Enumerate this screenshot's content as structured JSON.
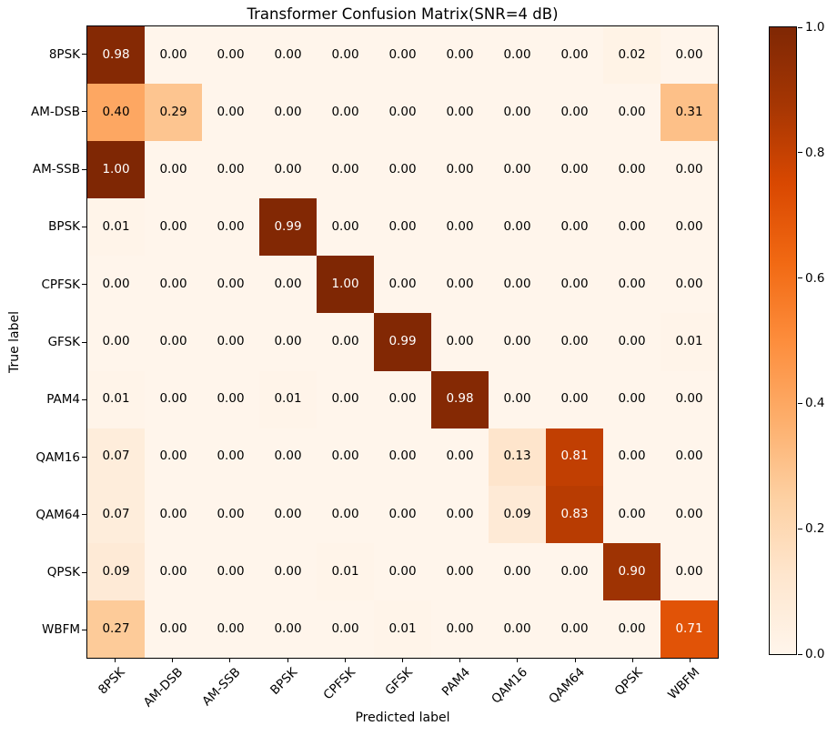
{
  "chart_data": {
    "type": "heatmap",
    "title": "Transformer Confusion Matrix(SNR=4 dB)",
    "xlabel": "Predicted label",
    "ylabel": "True label",
    "categories": [
      "8PSK",
      "AM-DSB",
      "AM-SSB",
      "BPSK",
      "CPFSK",
      "GFSK",
      "PAM4",
      "QAM16",
      "QAM64",
      "QPSK",
      "WBFM"
    ],
    "matrix": [
      [
        0.98,
        0.0,
        0.0,
        0.0,
        0.0,
        0.0,
        0.0,
        0.0,
        0.0,
        0.02,
        0.0
      ],
      [
        0.4,
        0.29,
        0.0,
        0.0,
        0.0,
        0.0,
        0.0,
        0.0,
        0.0,
        0.0,
        0.31
      ],
      [
        1.0,
        0.0,
        0.0,
        0.0,
        0.0,
        0.0,
        0.0,
        0.0,
        0.0,
        0.0,
        0.0
      ],
      [
        0.01,
        0.0,
        0.0,
        0.99,
        0.0,
        0.0,
        0.0,
        0.0,
        0.0,
        0.0,
        0.0
      ],
      [
        0.0,
        0.0,
        0.0,
        0.0,
        1.0,
        0.0,
        0.0,
        0.0,
        0.0,
        0.0,
        0.0
      ],
      [
        0.0,
        0.0,
        0.0,
        0.0,
        0.0,
        0.99,
        0.0,
        0.0,
        0.0,
        0.0,
        0.01
      ],
      [
        0.01,
        0.0,
        0.0,
        0.01,
        0.0,
        0.0,
        0.98,
        0.0,
        0.0,
        0.0,
        0.0
      ],
      [
        0.07,
        0.0,
        0.0,
        0.0,
        0.0,
        0.0,
        0.0,
        0.13,
        0.81,
        0.0,
        0.0
      ],
      [
        0.07,
        0.0,
        0.0,
        0.0,
        0.0,
        0.0,
        0.0,
        0.09,
        0.83,
        0.0,
        0.0
      ],
      [
        0.09,
        0.0,
        0.0,
        0.0,
        0.01,
        0.0,
        0.0,
        0.0,
        0.0,
        0.9,
        0.0
      ],
      [
        0.27,
        0.0,
        0.0,
        0.0,
        0.0,
        0.01,
        0.0,
        0.0,
        0.0,
        0.0,
        0.71
      ]
    ],
    "value_format_decimals": 2,
    "value_range": [
      0,
      1
    ],
    "colormap": "Oranges",
    "colormap_anchors": [
      "#fff5eb",
      "#fee6ce",
      "#fdd0a2",
      "#fdae6b",
      "#fd8d3c",
      "#f16913",
      "#d94801",
      "#a63603",
      "#7f2704"
    ],
    "cell_text_colors": {
      "light_value": "#ffffff",
      "dark_value": "#000000",
      "threshold": 0.5
    },
    "colorbar_ticks": [
      1.0,
      0.8,
      0.6,
      0.4,
      0.2,
      0.0
    ],
    "colorbar_tick_labels": [
      "1.0",
      "0.8",
      "0.6",
      "0.4",
      "0.2",
      "0.0"
    ],
    "grid": false,
    "legend_position": "colorbar-right"
  }
}
